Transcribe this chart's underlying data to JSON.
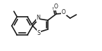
{
  "bg_color": "#ffffff",
  "line_color": "#1a1a1a",
  "line_width": 1.2,
  "figsize": [
    1.47,
    0.73
  ],
  "dpi": 100,
  "atoms": {
    "N_label": "N",
    "S_label": "S",
    "O1_label": "O",
    "O2_label": "O"
  },
  "font_size": 5.5
}
